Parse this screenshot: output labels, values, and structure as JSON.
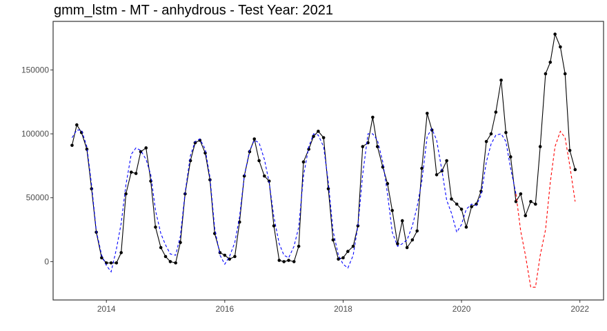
{
  "chart_data": {
    "type": "line",
    "title": "gmm_lstm - MT - anhydrous - Test Year: 2021",
    "xlabel": "",
    "ylabel": "",
    "xlim": [
      2013.1,
      2022.4
    ],
    "ylim": [
      -30000,
      188000
    ],
    "x_ticks": [
      2014,
      2016,
      2018,
      2020,
      2022
    ],
    "y_ticks": [
      0,
      50000,
      100000,
      150000
    ],
    "grid": false,
    "legend": "none",
    "colors": {
      "observed": "#000000",
      "fitted": "#0000ff",
      "forecast": "#ff0000"
    },
    "series": [
      {
        "style": "solid-line-with-points",
        "color": "#000000",
        "x": [
          2013.42,
          2013.5,
          2013.58,
          2013.67,
          2013.75,
          2013.83,
          2013.92,
          2014.0,
          2014.08,
          2014.17,
          2014.25,
          2014.33,
          2014.42,
          2014.5,
          2014.58,
          2014.67,
          2014.75,
          2014.83,
          2014.92,
          2015.0,
          2015.08,
          2015.17,
          2015.25,
          2015.33,
          2015.42,
          2015.5,
          2015.58,
          2015.67,
          2015.75,
          2015.83,
          2015.92,
          2016.0,
          2016.08,
          2016.17,
          2016.25,
          2016.33,
          2016.42,
          2016.5,
          2016.58,
          2016.67,
          2016.75,
          2016.83,
          2016.92,
          2017.0,
          2017.08,
          2017.17,
          2017.25,
          2017.33,
          2017.42,
          2017.5,
          2017.58,
          2017.67,
          2017.75,
          2017.83,
          2017.92,
          2018.0,
          2018.08,
          2018.17,
          2018.25,
          2018.33,
          2018.42,
          2018.5,
          2018.58,
          2018.67,
          2018.75,
          2018.83,
          2018.92,
          2019.0,
          2019.08,
          2019.17,
          2019.25,
          2019.33,
          2019.42,
          2019.5,
          2019.58,
          2019.67,
          2019.75,
          2019.83,
          2019.92,
          2020.0,
          2020.08,
          2020.17,
          2020.25,
          2020.33,
          2020.42,
          2020.5,
          2020.58,
          2020.67,
          2020.75,
          2020.83,
          2020.92,
          2021.0,
          2021.08,
          2021.17,
          2021.25,
          2021.33,
          2021.42,
          2021.5,
          2021.58,
          2021.67,
          2021.75,
          2021.83,
          2021.92
        ],
        "y": [
          91000,
          107000,
          101000,
          88000,
          57000,
          23000,
          3000,
          -1000,
          -1000,
          -1000,
          7000,
          53000,
          70000,
          69000,
          86000,
          89000,
          63000,
          27000,
          11000,
          4000,
          0,
          -1000,
          15000,
          53000,
          79000,
          93000,
          95000,
          85000,
          64000,
          22000,
          7000,
          5000,
          2000,
          4000,
          31000,
          67000,
          86000,
          96000,
          79000,
          67000,
          63000,
          28000,
          1000,
          0,
          1000,
          0,
          12000,
          78000,
          88000,
          98000,
          102000,
          97000,
          57000,
          17000,
          2000,
          3000,
          8000,
          12000,
          28000,
          90000,
          93000,
          113000,
          90000,
          74000,
          61000,
          40000,
          14000,
          32000,
          11000,
          17000,
          24000,
          73000,
          116000,
          103000,
          68000,
          71000,
          79000,
          49000,
          45000,
          41000,
          27000,
          43000,
          45000,
          55000,
          94000,
          100000,
          117000,
          142000,
          101000,
          82000,
          47000,
          53000,
          36000,
          47000,
          45000,
          90000,
          147000,
          156000,
          178000,
          168000,
          147000,
          87000,
          72000
        ]
      },
      {
        "style": "dashed-line",
        "color": "#0000ff",
        "x": [
          2013.42,
          2013.5,
          2013.58,
          2013.67,
          2013.75,
          2013.83,
          2013.92,
          2014.0,
          2014.08,
          2014.17,
          2014.25,
          2014.33,
          2014.42,
          2014.5,
          2014.58,
          2014.67,
          2014.75,
          2014.83,
          2014.92,
          2015.0,
          2015.08,
          2015.17,
          2015.25,
          2015.33,
          2015.42,
          2015.5,
          2015.58,
          2015.67,
          2015.75,
          2015.83,
          2015.92,
          2016.0,
          2016.08,
          2016.17,
          2016.25,
          2016.33,
          2016.42,
          2016.5,
          2016.58,
          2016.67,
          2016.75,
          2016.83,
          2016.92,
          2017.0,
          2017.08,
          2017.17,
          2017.25,
          2017.33,
          2017.42,
          2017.5,
          2017.58,
          2017.67,
          2017.75,
          2017.83,
          2017.92,
          2018.0,
          2018.08,
          2018.17,
          2018.25,
          2018.33,
          2018.42,
          2018.5,
          2018.58,
          2018.67,
          2018.75,
          2018.83,
          2018.92,
          2019.0,
          2019.08,
          2019.17,
          2019.25,
          2019.33,
          2019.42,
          2019.5,
          2019.58,
          2019.67,
          2019.75,
          2019.83,
          2019.92,
          2020.0,
          2020.08,
          2020.17,
          2020.25,
          2020.33,
          2020.42,
          2020.5,
          2020.58,
          2020.67,
          2020.75,
          2020.83,
          2020.92
        ],
        "y": [
          97000,
          103000,
          103000,
          90000,
          60000,
          24000,
          5000,
          -3000,
          -8000,
          10000,
          30000,
          60000,
          84000,
          89000,
          87000,
          80000,
          68000,
          40000,
          22000,
          13000,
          6000,
          5000,
          20000,
          54000,
          83000,
          94000,
          96000,
          88000,
          66000,
          26000,
          5000,
          -2000,
          4000,
          15000,
          35000,
          67000,
          87000,
          95000,
          93000,
          80000,
          62000,
          35000,
          14000,
          5000,
          3000,
          12000,
          27000,
          67000,
          90000,
          100000,
          99000,
          90000,
          62000,
          24000,
          5000,
          -2000,
          -5000,
          5000,
          28000,
          68000,
          100000,
          100000,
          95000,
          78000,
          53000,
          23000,
          12000,
          14000,
          17000,
          28000,
          43000,
          63000,
          98000,
          104000,
          95000,
          71000,
          48000,
          38000,
          23000,
          29000,
          41000,
          45000,
          44000,
          52000,
          78000,
          92000,
          99000,
          100000,
          94000,
          73000,
          53000
        ]
      },
      {
        "style": "dashed-line",
        "color": "#ff0000",
        "x": [
          2020.92,
          2021.0,
          2021.08,
          2021.17,
          2021.25,
          2021.33,
          2021.42,
          2021.5,
          2021.58,
          2021.67,
          2021.75,
          2021.83,
          2021.92
        ],
        "y": [
          53000,
          24000,
          5000,
          -20000,
          -20000,
          5000,
          25000,
          62000,
          90000,
          102000,
          97000,
          75000,
          47000
        ]
      }
    ]
  }
}
